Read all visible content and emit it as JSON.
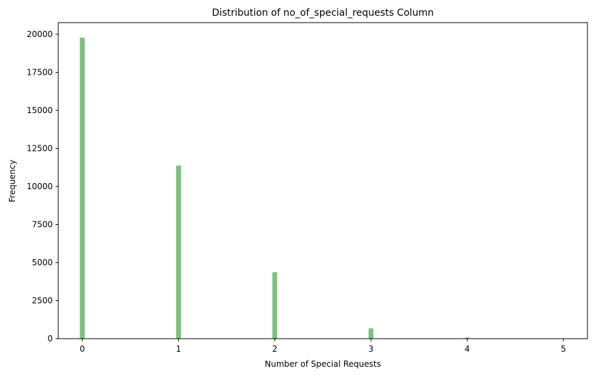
{
  "chart_data": {
    "type": "bar",
    "title": "Distribution of no_of_special_requests Column",
    "xlabel": "Number of Special Requests",
    "ylabel": "Frequency",
    "x": [
      0,
      1,
      2,
      3,
      4,
      5
    ],
    "values": [
      19777,
      11373,
      4364,
      675,
      78,
      8
    ],
    "xlim": [
      -0.25,
      5.25
    ],
    "ylim": [
      0,
      20766
    ],
    "xticks": [
      "0",
      "1",
      "2",
      "3",
      "4",
      "5"
    ],
    "yticks": [
      "0",
      "2500",
      "5000",
      "7500",
      "10000",
      "12500",
      "15000",
      "17500",
      "20000"
    ],
    "bar_color": "#7fbf7f",
    "grid": false,
    "legend": "none"
  }
}
